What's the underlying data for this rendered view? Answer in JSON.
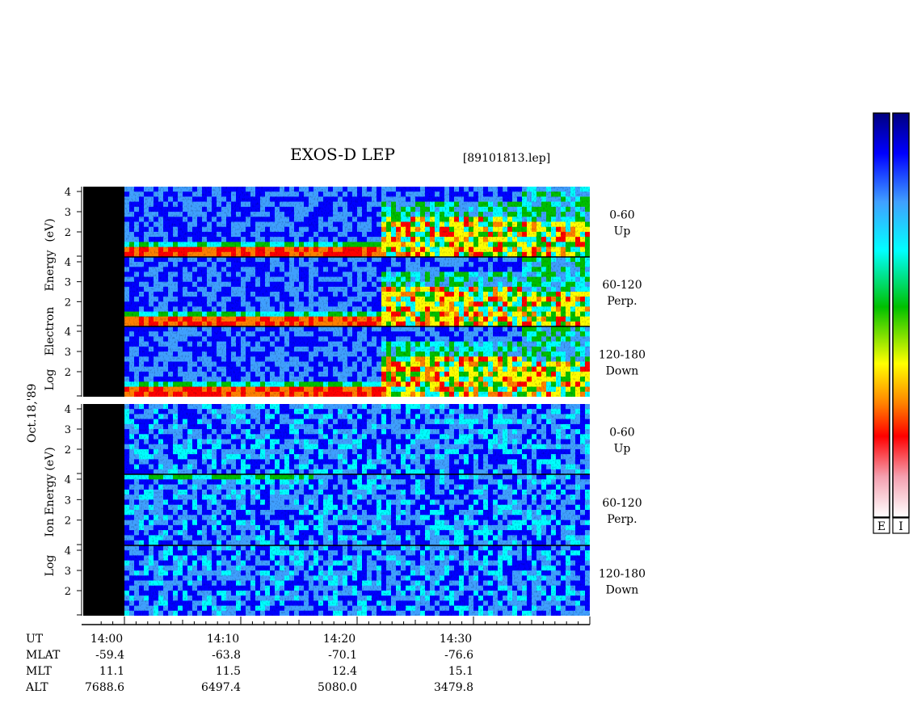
{
  "title": "EXOS-D LEP",
  "file_label": "[89101813.lep]",
  "date_label": "Oct.18,'89",
  "chart_data": [
    {
      "type": "heatmap",
      "species": "Electron",
      "ylabel": "Log Electron Energy (eV)",
      "ylabel_words": [
        "Log",
        "Electron",
        "Energy",
        "(eV)"
      ],
      "panels": [
        {
          "angle": "0-60",
          "direction": "Up",
          "yticks": [
            "4",
            "3",
            "2"
          ]
        },
        {
          "angle": "60-120",
          "direction": "Perp.",
          "yticks": [
            "4",
            "3",
            "2"
          ]
        },
        {
          "angle": "120-180",
          "direction": "Down",
          "yticks": [
            "4",
            "3",
            "2"
          ]
        }
      ]
    },
    {
      "type": "heatmap",
      "species": "Ion",
      "ylabel": "Log Ion Energy (eV)",
      "ylabel_words": [
        "Log",
        "Ion",
        "Energy",
        "(eV)"
      ],
      "panels": [
        {
          "angle": "0-60",
          "direction": "Up",
          "yticks": [
            "4",
            "3",
            "2"
          ]
        },
        {
          "angle": "60-120",
          "direction": "Perp.",
          "yticks": [
            "4",
            "3",
            "2"
          ]
        },
        {
          "angle": "120-180",
          "direction": "Down",
          "yticks": [
            "4",
            "3",
            "2"
          ]
        }
      ]
    }
  ],
  "x_axis": {
    "rows": [
      {
        "label": "UT",
        "values": [
          "14:00",
          "14:10",
          "14:20",
          "14:30"
        ]
      },
      {
        "label": "MLAT",
        "values": [
          "-59.4",
          "-63.8",
          "-70.1",
          "-76.6"
        ]
      },
      {
        "label": "MLT",
        "values": [
          "11.1",
          "11.5",
          "12.4",
          "15.1"
        ]
      },
      {
        "label": "ALT",
        "values": [
          "7688.6",
          "6497.4",
          "5080.0",
          "3479.8"
        ]
      }
    ],
    "minutes": [
      0,
      10,
      20,
      30
    ],
    "range_minutes": [
      0,
      40
    ]
  },
  "colorbars": [
    {
      "label": "E"
    },
    {
      "label": "I"
    }
  ],
  "colorscale": [
    "#ffffff",
    "#f4a0b0",
    "#ff0000",
    "#ff8000",
    "#ffff00",
    "#00c000",
    "#00ffff",
    "#40a0ff",
    "#0000ff",
    "#000080"
  ]
}
